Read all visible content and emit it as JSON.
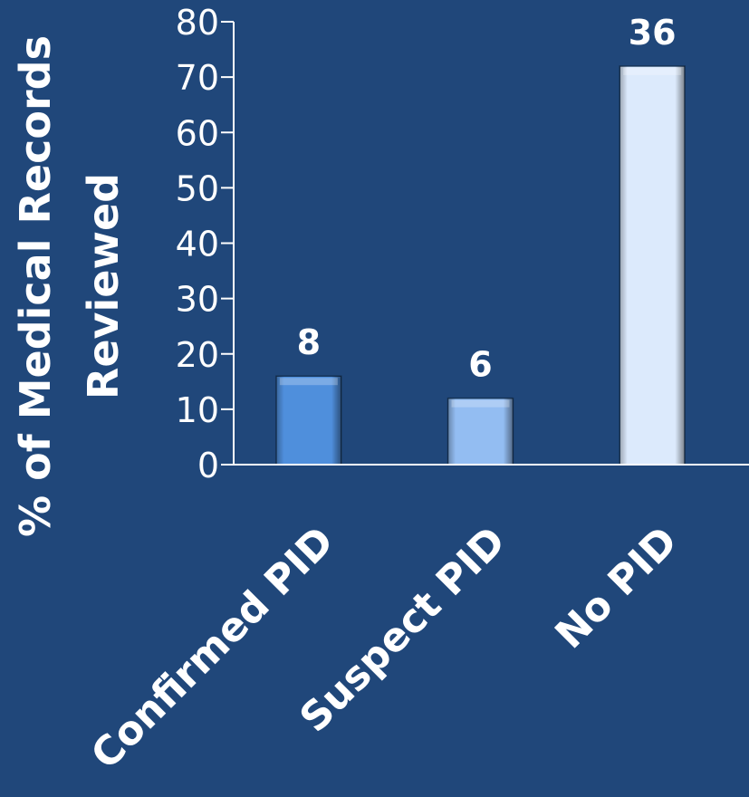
{
  "chart_data": {
    "type": "bar",
    "title": "",
    "xlabel": "",
    "ylabel_lines": [
      "% of Medical Records",
      "Reviewed"
    ],
    "ylim": [
      0,
      80
    ],
    "yticks": [
      0,
      10,
      20,
      30,
      40,
      50,
      60,
      70,
      80
    ],
    "categories": [
      "Confirmed PID",
      "Suspect PID",
      "No PID"
    ],
    "values": [
      16,
      12,
      72
    ],
    "data_labels": [
      "8",
      "6",
      "36"
    ],
    "bar_colors": [
      "#4f8fdc",
      "#93bdf2",
      "#dceafc"
    ],
    "grid": false,
    "legend": "none"
  },
  "colors": {
    "background": "#20477a",
    "axis": "#ffffff",
    "text": "#ffffff"
  }
}
